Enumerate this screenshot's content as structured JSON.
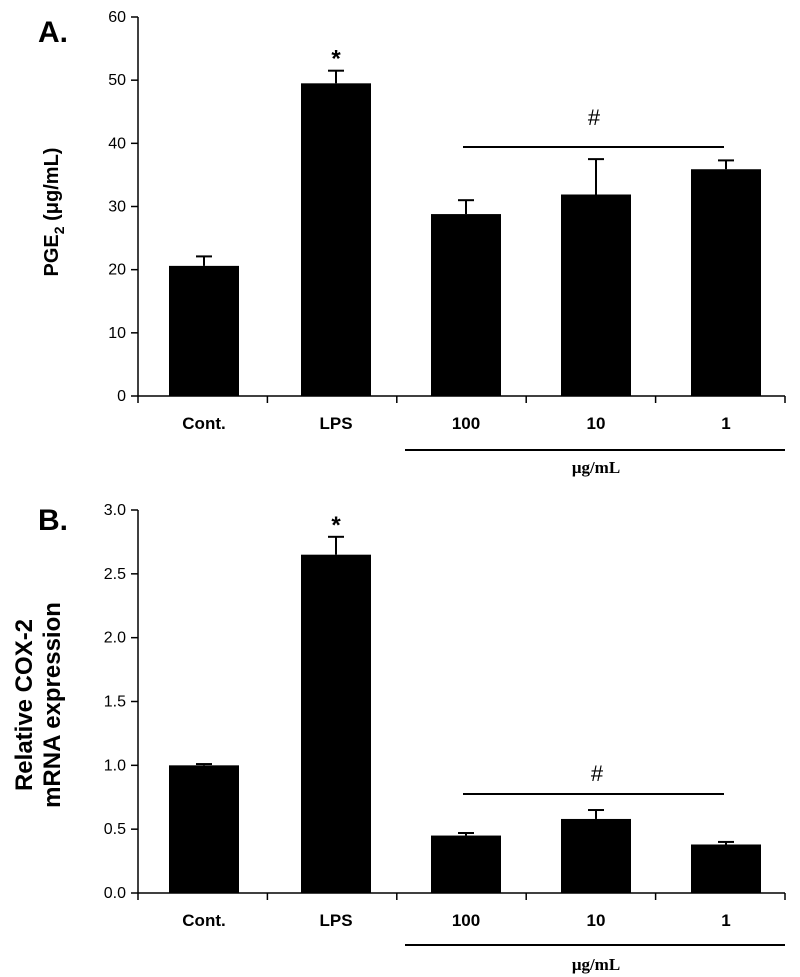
{
  "chart_data": [
    {
      "panel": "A.",
      "type": "bar",
      "ylabel_main": "PGE",
      "ylabel_sub": "2",
      "ylabel_unit": " (μg/mL)",
      "ylim": [
        0,
        60
      ],
      "yticks": [
        "0",
        "10",
        "20",
        "30",
        "40",
        "50",
        "60"
      ],
      "categories": [
        "Cont.",
        "LPS",
        "100",
        "10",
        "1"
      ],
      "values": [
        20.6,
        49.5,
        28.8,
        31.9,
        35.9
      ],
      "errors": [
        1.5,
        2.0,
        2.2,
        5.6,
        1.4
      ],
      "star_label": "*",
      "star_index": 1,
      "hash_label": "#",
      "group_label": "μg/mL",
      "bar_color": "#000000"
    },
    {
      "panel": "B.",
      "type": "bar",
      "ylabel_line1": "Relative COX-2",
      "ylabel_line2": "mRNA expression",
      "ylim": [
        0,
        3.0
      ],
      "yticks": [
        "0.0",
        "0.5",
        "1.0",
        "1.5",
        "2.0",
        "2.5",
        "3.0"
      ],
      "categories": [
        "Cont.",
        "LPS",
        "100",
        "10",
        "1"
      ],
      "values": [
        1.0,
        2.65,
        0.45,
        0.58,
        0.38
      ],
      "errors": [
        0.01,
        0.14,
        0.02,
        0.07,
        0.02
      ],
      "star_label": "*",
      "star_index": 1,
      "hash_label": "#",
      "group_label": "μg/mL",
      "bar_color": "#000000"
    }
  ]
}
